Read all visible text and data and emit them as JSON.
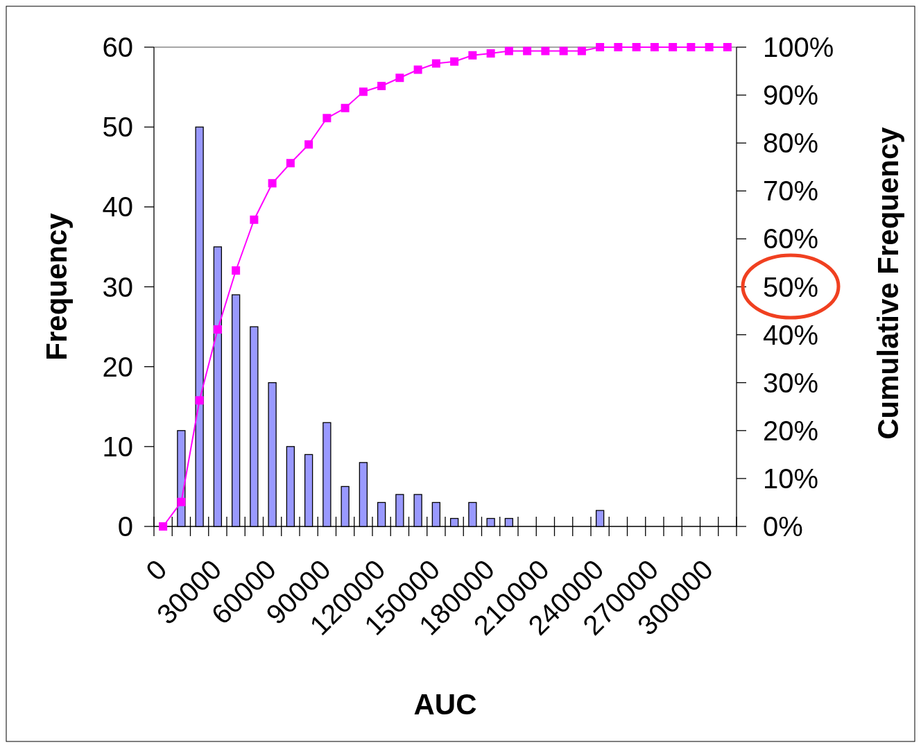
{
  "chart_data": {
    "type": "bar",
    "xlabel": "AUC",
    "ylabel": "Frequency",
    "y2label": "Cumulative Frequency",
    "categories": [
      "0",
      null,
      null,
      "30000",
      null,
      null,
      "60000",
      null,
      null,
      "90000",
      null,
      null,
      "120000",
      null,
      null,
      "150000",
      null,
      null,
      "180000",
      null,
      null,
      "210000",
      null,
      null,
      "240000",
      null,
      null,
      "270000",
      null,
      null,
      "300000",
      null
    ],
    "series": [
      {
        "color": "#9999ff",
        "values": [
          0,
          12,
          50,
          35,
          29,
          25,
          18,
          10,
          9,
          13,
          5,
          8,
          3,
          4,
          4,
          3,
          1,
          3,
          1,
          1,
          0,
          0,
          0,
          0,
          2,
          0,
          0,
          0,
          0,
          0,
          0,
          0
        ]
      },
      {
        "type": "line",
        "axis": "y2",
        "color": "#ff00ff",
        "marker": "square",
        "values": [
          0,
          5.1,
          26.3,
          41.1,
          53.4,
          64.0,
          71.6,
          75.8,
          79.7,
          85.2,
          87.3,
          90.7,
          91.9,
          93.6,
          95.3,
          96.6,
          97.0,
          98.3,
          98.7,
          99.2,
          99.2,
          99.2,
          99.2,
          99.2,
          100,
          100,
          100,
          100,
          100,
          100,
          100,
          100
        ]
      }
    ],
    "ylim": [
      0,
      60
    ],
    "yticks": [
      0,
      10,
      20,
      30,
      40,
      50,
      60
    ],
    "y2lim": [
      0,
      100
    ],
    "y2ticks": [
      {
        "value": 0,
        "label": "0%"
      },
      {
        "value": 10,
        "label": "10%"
      },
      {
        "value": 20,
        "label": "20%"
      },
      {
        "value": 30,
        "label": "30%"
      },
      {
        "value": 40,
        "label": "40%"
      },
      {
        "value": 50,
        "label": "50%"
      },
      {
        "value": 60,
        "label": "60%"
      },
      {
        "value": 70,
        "label": "70%"
      },
      {
        "value": 80,
        "label": "80%"
      },
      {
        "value": 90,
        "label": "90%"
      },
      {
        "value": 100,
        "label": "100%"
      }
    ],
    "grid": false
  }
}
